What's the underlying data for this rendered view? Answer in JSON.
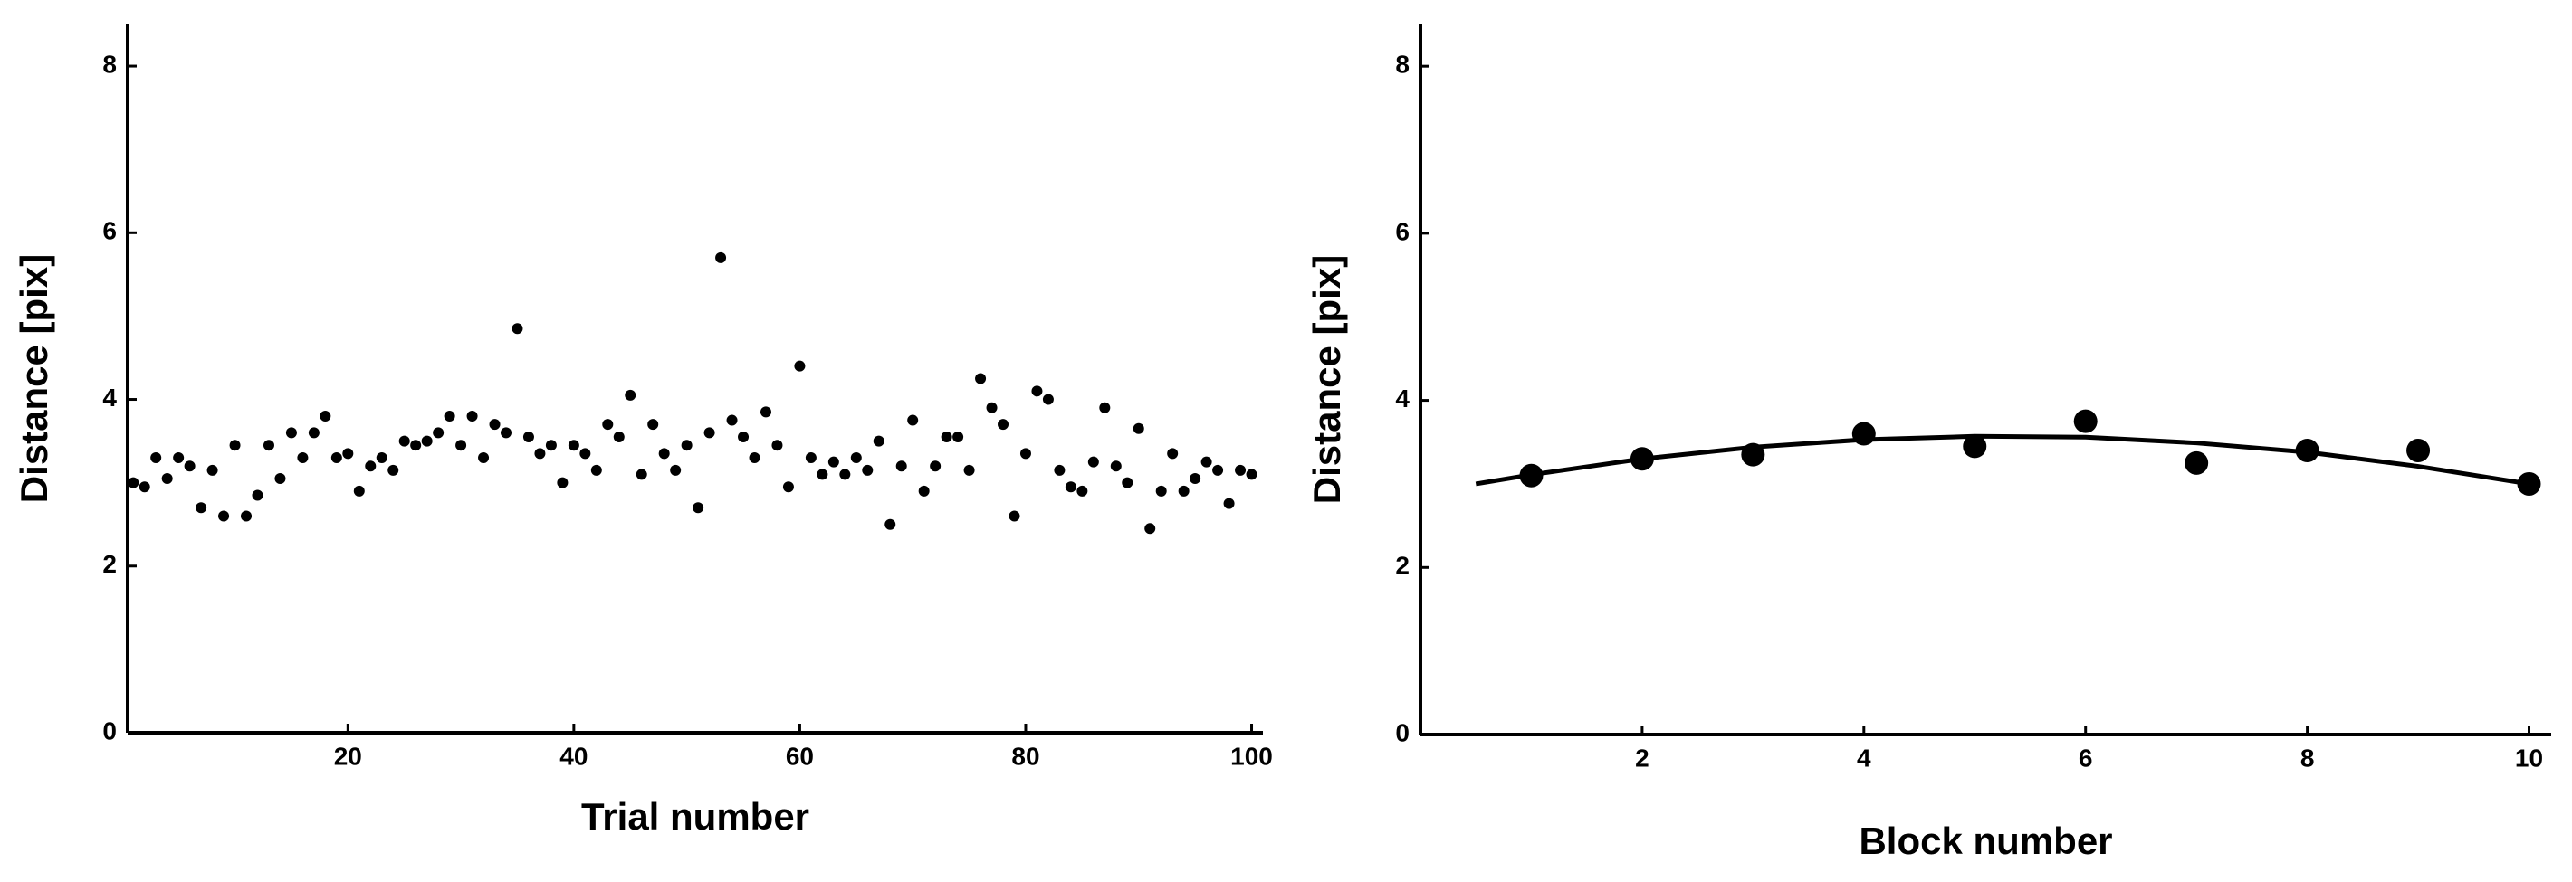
{
  "chart_data": [
    {
      "type": "scatter",
      "x_label": "Trial number",
      "y_label": "Distance [pix]",
      "color": "#000000",
      "x": [
        1,
        2,
        3,
        4,
        5,
        6,
        7,
        8,
        9,
        10,
        11,
        12,
        13,
        14,
        15,
        16,
        17,
        18,
        19,
        20,
        21,
        22,
        23,
        24,
        25,
        26,
        27,
        28,
        29,
        30,
        31,
        32,
        33,
        34,
        35,
        36,
        37,
        38,
        39,
        40,
        41,
        42,
        43,
        44,
        45,
        46,
        47,
        48,
        49,
        50,
        51,
        52,
        53,
        54,
        55,
        56,
        57,
        58,
        59,
        60,
        61,
        62,
        63,
        64,
        65,
        66,
        67,
        68,
        69,
        70,
        71,
        72,
        73,
        74,
        75,
        76,
        77,
        78,
        79,
        80,
        81,
        82,
        83,
        84,
        85,
        86,
        87,
        88,
        89,
        90,
        91,
        92,
        93,
        94,
        95,
        96,
        97,
        98,
        99,
        100
      ],
      "values": [
        3.0,
        2.95,
        3.3,
        3.05,
        3.3,
        3.2,
        2.7,
        3.15,
        2.6,
        3.45,
        2.6,
        2.85,
        3.45,
        3.05,
        3.6,
        3.3,
        3.6,
        3.8,
        3.3,
        3.35,
        2.9,
        3.2,
        3.3,
        3.15,
        3.5,
        3.45,
        3.5,
        3.6,
        3.8,
        3.45,
        3.8,
        3.3,
        3.7,
        3.6,
        4.85,
        3.55,
        3.35,
        3.45,
        3.0,
        3.45,
        3.35,
        3.15,
        3.7,
        3.55,
        4.05,
        3.1,
        3.7,
        3.35,
        3.15,
        3.45,
        2.7,
        3.6,
        5.7,
        3.75,
        3.55,
        3.3,
        3.85,
        3.45,
        2.95,
        4.4,
        3.3,
        3.1,
        3.25,
        3.1,
        3.3,
        3.15,
        3.5,
        2.5,
        3.2,
        3.75,
        2.9,
        3.2,
        3.55,
        3.55,
        3.15,
        4.25,
        3.9,
        3.7,
        2.6,
        3.35,
        4.1,
        4.0,
        3.15,
        2.95,
        2.9,
        3.25,
        3.9,
        3.2,
        3.0,
        3.65,
        2.45,
        2.9,
        3.35,
        2.9,
        3.05,
        3.25,
        3.15,
        2.75,
        3.15,
        3.1
      ],
      "xlim": [
        0.5,
        101
      ],
      "ylim": [
        0,
        8.5
      ],
      "xticks": [
        20,
        40,
        60,
        80,
        100
      ],
      "yticks": [
        0,
        2,
        4,
        6,
        8
      ]
    },
    {
      "type": "scatter",
      "x_label": "Block number",
      "y_label": "Distance [pix]",
      "color": "#000000",
      "x": [
        1,
        2,
        3,
        4,
        5,
        6,
        7,
        8,
        9,
        10
      ],
      "values": [
        3.1,
        3.3,
        3.35,
        3.6,
        3.45,
        3.75,
        3.25,
        3.4,
        3.4,
        3.0
      ],
      "fit": {
        "x": [
          0.5,
          1,
          2,
          3,
          4,
          5,
          6,
          7,
          8,
          9,
          10
        ],
        "values": [
          3.0,
          3.11,
          3.3,
          3.44,
          3.53,
          3.57,
          3.56,
          3.49,
          3.38,
          3.21,
          3.0
        ]
      },
      "xlim": [
        0,
        10.2
      ],
      "ylim": [
        0,
        8.5
      ],
      "xticks": [
        2,
        4,
        6,
        8,
        10
      ],
      "yticks": [
        0,
        2,
        4,
        6,
        8
      ]
    }
  ]
}
